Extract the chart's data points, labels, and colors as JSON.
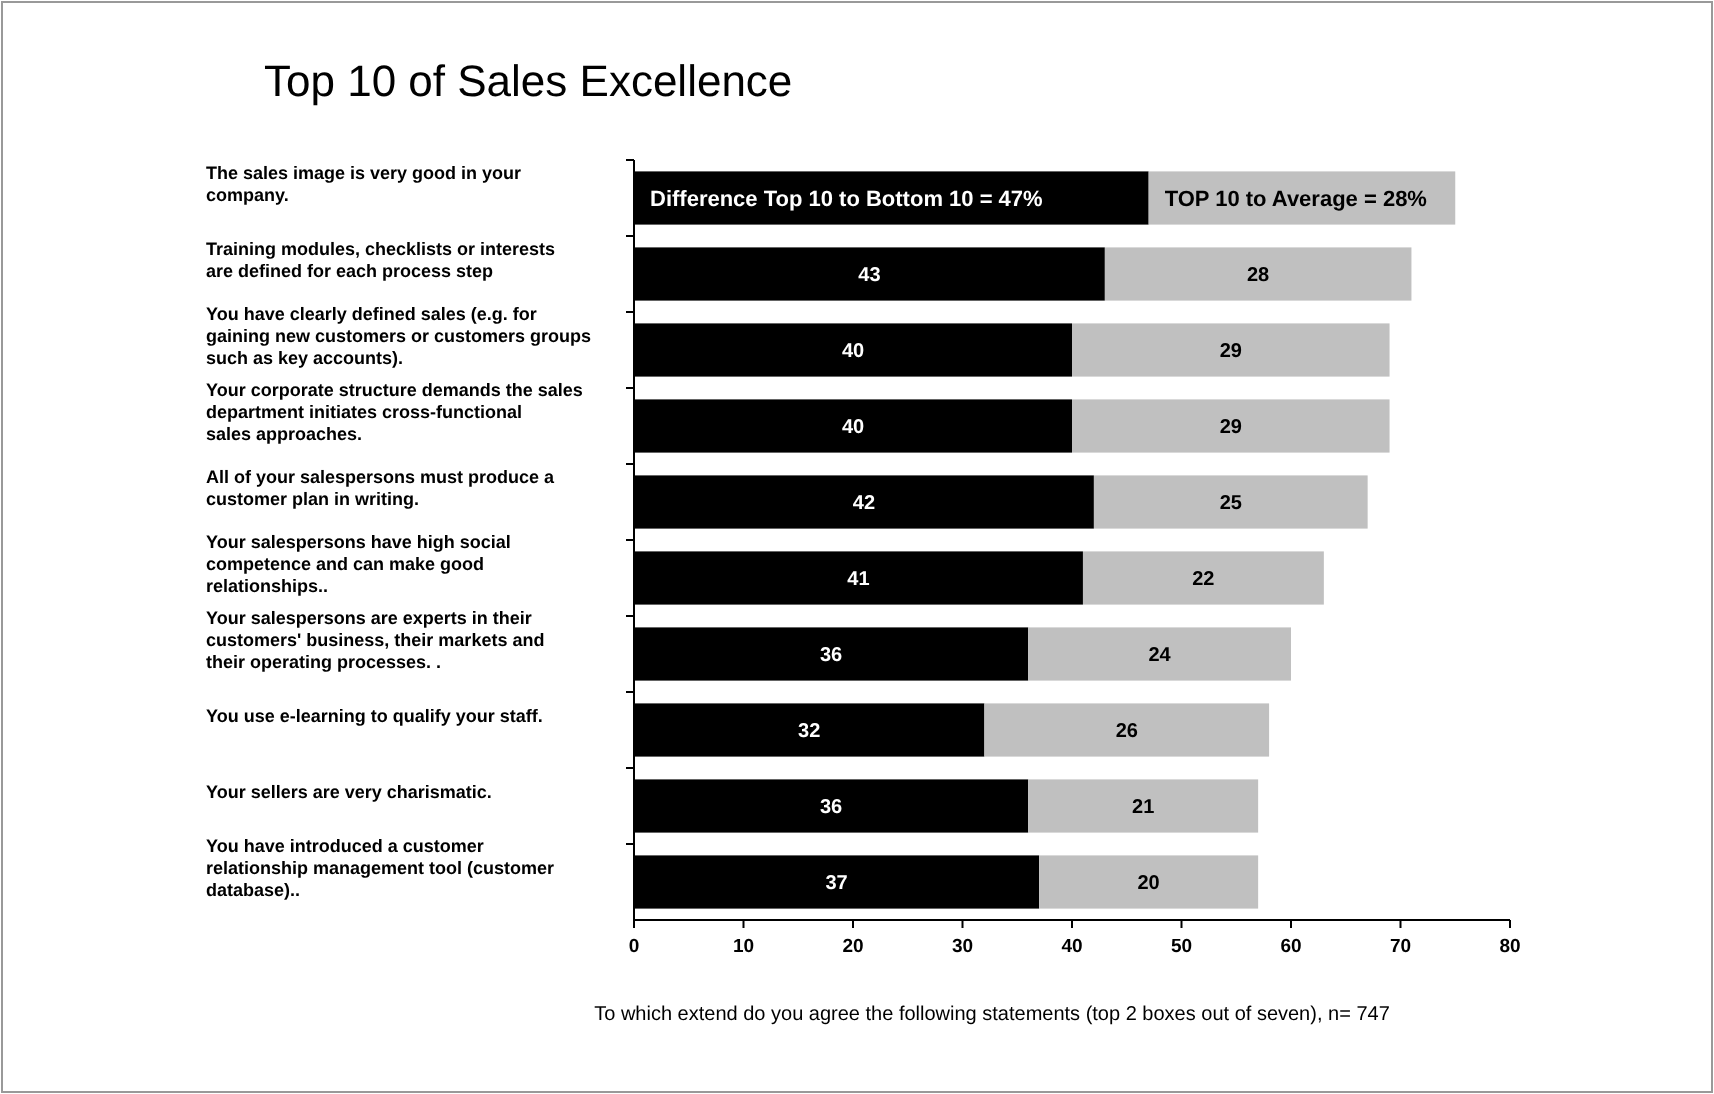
{
  "chart_data": {
    "type": "bar",
    "orientation": "horizontal",
    "stacked": true,
    "title": "Top 10 of Sales Excellence",
    "xlabel": "To which extend do you agree the following statements (top 2 boxes out of seven), n= 747",
    "categories": [
      "The sales image is very good in your company.",
      "Training modules, checklists or interests are defined for each process step",
      "You have clearly defined sales (e.g. for gaining new customers or customers groups such as key accounts).",
      "Your corporate structure demands the sales department initiates cross-functional sales approaches.",
      "All of your salespersons must produce a customer plan in writing.",
      "Your salespersons have high social competence and can make good relationships..",
      "Your salespersons are experts in their customers' business, their markets and their operating processes. .",
      "You use e-learning to qualify your staff.",
      "Your sellers are very charismatic.",
      "You have introduced a customer relationship management tool (customer database).."
    ],
    "series": [
      {
        "color": "#000000",
        "values": [
          47,
          43,
          40,
          40,
          42,
          41,
          36,
          32,
          36,
          37
        ],
        "value_labels": [
          "Difference Top 10 to Bottom 10 = 47%",
          "43",
          "40",
          "40",
          "42",
          "41",
          "36",
          "32",
          "36",
          "37"
        ]
      },
      {
        "color": "#c0c0c0",
        "values": [
          28,
          28,
          29,
          29,
          25,
          22,
          24,
          26,
          21,
          20
        ],
        "value_labels": [
          "TOP 10 to Average = 28%",
          "28",
          "29",
          "29",
          "25",
          "22",
          "24",
          "26",
          "21",
          "20"
        ]
      }
    ],
    "xlim": [
      0,
      80
    ],
    "xticks": [
      0,
      10,
      20,
      30,
      40,
      50,
      60,
      70,
      80
    ],
    "grid": false
  }
}
